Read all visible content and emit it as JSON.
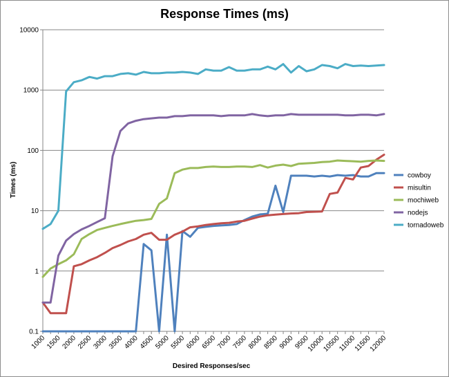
{
  "chart_data": {
    "type": "line",
    "title": "Response Times (ms)",
    "xlabel": "Desired Responses/sec",
    "ylabel": "Times (ms)",
    "yscale": "log",
    "ylim": [
      0.1,
      10000
    ],
    "y_ticks": [
      "0.1",
      "1",
      "10",
      "100",
      "1000",
      "10000"
    ],
    "grid": "horizontal major",
    "legend": "right",
    "x": [
      1000,
      1250,
      1500,
      1750,
      2000,
      2250,
      2500,
      2750,
      3000,
      3250,
      3500,
      3750,
      4000,
      4250,
      4500,
      4750,
      5000,
      5250,
      5500,
      5750,
      6000,
      6250,
      6500,
      6750,
      7000,
      7250,
      7500,
      7750,
      8000,
      8250,
      8500,
      8750,
      9000,
      9250,
      9500,
      9750,
      10000,
      10250,
      10500,
      10750,
      11000,
      11250,
      11500,
      11750,
      12000
    ],
    "x_ticks": [
      "1000",
      "1500",
      "2000",
      "2500",
      "3000",
      "3500",
      "4000",
      "4500",
      "5000",
      "5500",
      "6000",
      "6500",
      "7000",
      "7500",
      "8000",
      "8500",
      "9000",
      "9500",
      "10000",
      "10500",
      "11000",
      "11500",
      "12000"
    ],
    "series": [
      {
        "name": "cowboy",
        "color": "#4f81bd",
        "values": [
          0.1,
          0.1,
          0.1,
          0.1,
          0.1,
          0.1,
          0.1,
          0.1,
          0.1,
          0.1,
          0.1,
          0.1,
          0.1,
          2.8,
          2.2,
          0.1,
          4.0,
          0.1,
          4.6,
          3.7,
          5.2,
          5.4,
          5.6,
          5.7,
          5.8,
          6.0,
          7.0,
          8.0,
          8.7,
          8.9,
          26,
          9.5,
          38,
          38,
          38,
          37,
          38,
          37,
          39,
          38,
          39,
          37,
          37,
          42,
          42
        ]
      },
      {
        "name": "misultin",
        "color": "#c0504d",
        "values": [
          0.3,
          0.2,
          0.2,
          0.2,
          1.2,
          1.3,
          1.5,
          1.7,
          2.0,
          2.4,
          2.7,
          3.1,
          3.4,
          4.0,
          4.3,
          3.3,
          3.3,
          4.0,
          4.5,
          5.3,
          5.5,
          5.8,
          6.0,
          6.2,
          6.3,
          6.6,
          6.8,
          7.4,
          8.0,
          8.4,
          8.6,
          8.8,
          9.0,
          9.1,
          9.5,
          9.6,
          9.7,
          19,
          20,
          35,
          33,
          52,
          55,
          70,
          85
        ]
      },
      {
        "name": "mochiweb",
        "color": "#9bbb59",
        "values": [
          0.8,
          1.1,
          1.3,
          1.5,
          1.9,
          3.4,
          4.1,
          4.8,
          5.2,
          5.6,
          6.0,
          6.4,
          6.8,
          7.0,
          7.3,
          13,
          16,
          42,
          48,
          51,
          51,
          53,
          54,
          53,
          53,
          54,
          54,
          53,
          57,
          52,
          56,
          58,
          55,
          60,
          61,
          62,
          64,
          65,
          68,
          67,
          66,
          65,
          67,
          68,
          67
        ]
      },
      {
        "name": "nodejs",
        "color": "#8064a2",
        "values": [
          0.3,
          0.3,
          1.8,
          3.2,
          4.1,
          4.9,
          5.6,
          6.5,
          7.5,
          80,
          210,
          280,
          310,
          330,
          340,
          350,
          350,
          370,
          370,
          380,
          380,
          380,
          380,
          370,
          380,
          380,
          380,
          400,
          380,
          370,
          380,
          380,
          400,
          390,
          390,
          390,
          390,
          390,
          390,
          380,
          380,
          390,
          390,
          380,
          400
        ]
      },
      {
        "name": "tornadoweb",
        "color": "#4bacc6",
        "values": [
          5,
          6,
          10,
          950,
          1350,
          1450,
          1650,
          1550,
          1700,
          1700,
          1850,
          1900,
          1800,
          2000,
          1900,
          1900,
          1950,
          1950,
          2000,
          1950,
          1850,
          2200,
          2100,
          2100,
          2400,
          2100,
          2100,
          2200,
          2200,
          2450,
          2200,
          2700,
          1950,
          2500,
          2050,
          2200,
          2600,
          2500,
          2300,
          2700,
          2500,
          2550,
          2500,
          2550,
          2600
        ]
      }
    ]
  }
}
